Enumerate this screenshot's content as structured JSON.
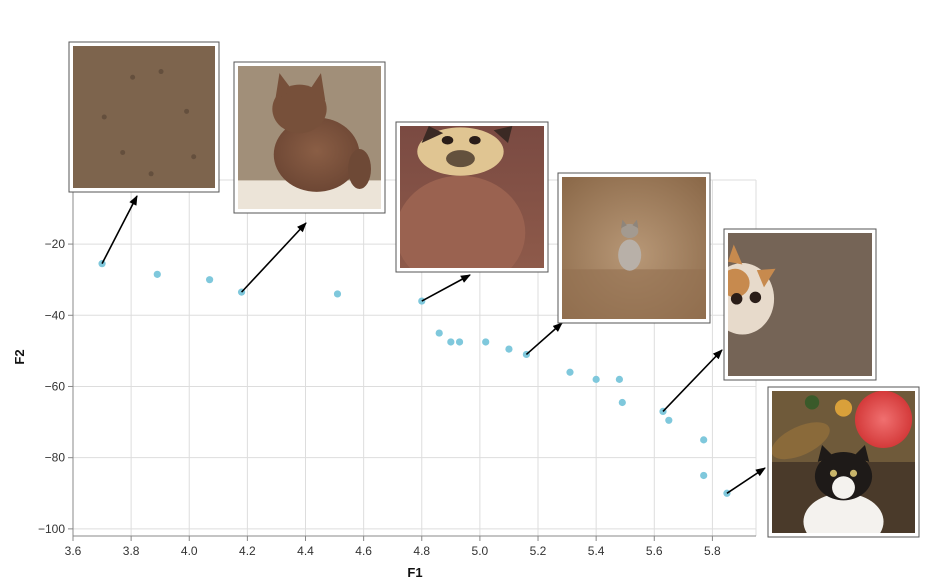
{
  "chart_data": {
    "type": "scatter",
    "xlabel": "F1",
    "ylabel": "F2",
    "xlim": [
      3.6,
      5.95
    ],
    "ylim": [
      -102,
      -2
    ],
    "x_ticks": [
      3.6,
      3.8,
      4.0,
      4.2,
      4.4,
      4.6,
      4.8,
      5.0,
      5.2,
      5.4,
      5.6,
      5.8
    ],
    "x_tick_labels": [
      "3.6",
      "3.8",
      "4.0",
      "4.2",
      "4.4",
      "4.6",
      "4.8",
      "5.0",
      "5.2",
      "5.4",
      "5.6",
      "5.8"
    ],
    "y_ticks": [
      -20,
      -40,
      -60,
      -80,
      -100
    ],
    "y_tick_labels": [
      "−20",
      "−40",
      "−60",
      "−80",
      "−100"
    ],
    "grid": true,
    "point_color": "#7fc8dc",
    "points": [
      {
        "x": 3.7,
        "y": -25.5
      },
      {
        "x": 3.89,
        "y": -28.5
      },
      {
        "x": 4.07,
        "y": -30.0
      },
      {
        "x": 4.18,
        "y": -33.5
      },
      {
        "x": 4.51,
        "y": -34.0
      },
      {
        "x": 4.8,
        "y": -36.0
      },
      {
        "x": 4.86,
        "y": -45.0
      },
      {
        "x": 4.9,
        "y": -47.5
      },
      {
        "x": 4.93,
        "y": -47.5
      },
      {
        "x": 5.02,
        "y": -47.5
      },
      {
        "x": 5.1,
        "y": -49.5
      },
      {
        "x": 5.16,
        "y": -51.0
      },
      {
        "x": 5.31,
        "y": -56.0
      },
      {
        "x": 5.4,
        "y": -58.0
      },
      {
        "x": 5.48,
        "y": -58.0
      },
      {
        "x": 5.49,
        "y": -64.5
      },
      {
        "x": 5.63,
        "y": -67.0
      },
      {
        "x": 5.65,
        "y": -69.5
      },
      {
        "x": 5.77,
        "y": -75.0
      },
      {
        "x": 5.77,
        "y": -85.0
      },
      {
        "x": 5.85,
        "y": -90.0
      }
    ],
    "annotations": [
      {
        "name": "thumbnail-brown-texture",
        "anchor": {
          "x": 3.7,
          "y": -25.5
        },
        "scene": "texture"
      },
      {
        "name": "thumbnail-brown-cat-sitting",
        "anchor": {
          "x": 4.18,
          "y": -33.5
        },
        "scene": "cat-sitting"
      },
      {
        "name": "thumbnail-cat-face-closeup",
        "anchor": {
          "x": 4.8,
          "y": -36.0
        },
        "scene": "cat-face"
      },
      {
        "name": "thumbnail-small-gray-cat",
        "anchor": {
          "x": 5.16,
          "y": -51.0
        },
        "scene": "small-cat"
      },
      {
        "name": "thumbnail-cat-peeking",
        "anchor": {
          "x": 5.63,
          "y": -67.0
        },
        "scene": "peek-cat"
      },
      {
        "name": "thumbnail-cat-with-flowers",
        "anchor": {
          "x": 5.85,
          "y": -90.0
        },
        "scene": "flower-cat"
      }
    ]
  }
}
